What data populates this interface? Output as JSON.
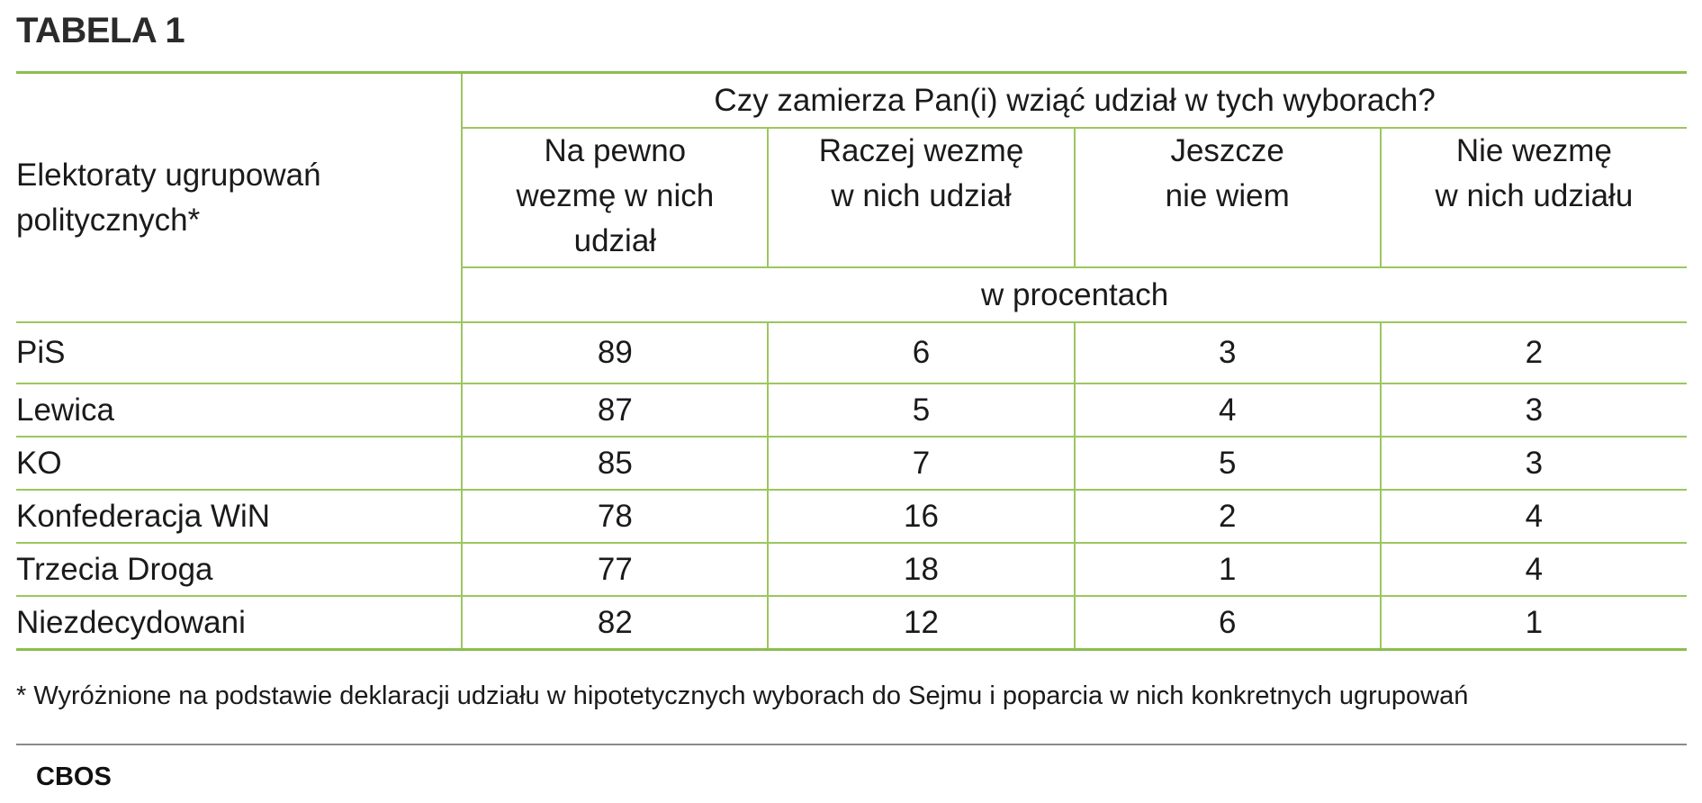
{
  "title": "TABELA 1",
  "chart_data": {
    "type": "table",
    "row_header": "Elektoraty ugrupowań politycznych*",
    "question": "Czy zamierza Pan(i) wziąć udział w tych wyborach?",
    "columns": [
      "Na pewno\nwezmę w nich\nudział",
      "Raczej wezmę\nw nich udział",
      "Jeszcze\nnie wiem",
      "Nie wezmę\nw nich udziału"
    ],
    "unit": "w procentach",
    "rows": [
      {
        "label": "PiS",
        "values": [
          89,
          6,
          3,
          2
        ]
      },
      {
        "label": "Lewica",
        "values": [
          87,
          5,
          4,
          3
        ]
      },
      {
        "label": "KO",
        "values": [
          85,
          7,
          5,
          3
        ]
      },
      {
        "label": "Konfederacja WiN",
        "values": [
          78,
          16,
          2,
          4
        ]
      },
      {
        "label": "Trzecia Droga",
        "values": [
          77,
          18,
          1,
          4
        ]
      },
      {
        "label": "Niezdecydowani",
        "values": [
          82,
          12,
          6,
          1
        ]
      }
    ]
  },
  "footnote": "* Wyróżnione na podstawie deklaracji udziału w hipotetycznych wyborach do Sejmu i  poparcia w nich konkretnych ugrupowań",
  "source": "CBOS",
  "colors": {
    "accent_green": "#8cbd4f",
    "divider_gray": "#8a8a8a"
  }
}
